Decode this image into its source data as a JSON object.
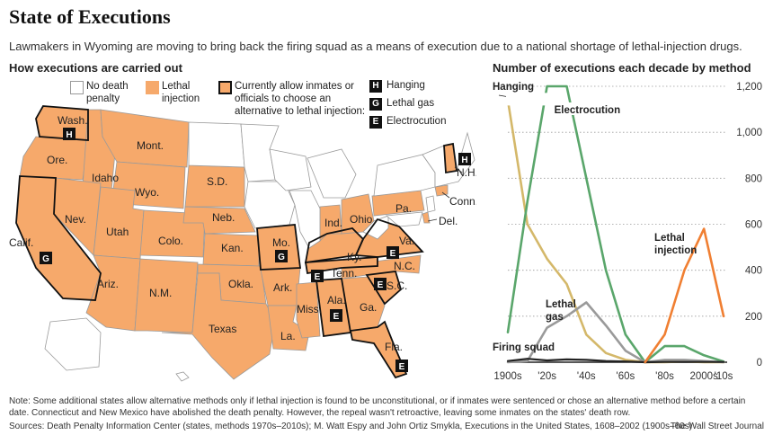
{
  "title": "State of Executions",
  "subtitle": "Lawmakers in Wyoming are moving to bring back the firing squad as a means of execution due to a national shortage of lethal-injection drugs.",
  "map": {
    "heading": "How executions are carried out",
    "legend": {
      "no_death_penalty": "No death penalty",
      "lethal_injection": "Lethal injection",
      "alternative": "Currently allow inmates or officials to choose an alternative to lethal injection:"
    },
    "method_keys": [
      {
        "letter": "H",
        "label": "Hanging"
      },
      {
        "letter": "G",
        "label": "Lethal gas"
      },
      {
        "letter": "E",
        "label": "Electrocution"
      }
    ],
    "state_labels": [
      "Wash.",
      "Ore.",
      "Idaho",
      "Mont.",
      "Wyo.",
      "S.D.",
      "Neb.",
      "Calif.",
      "Nev.",
      "Utah",
      "Colo.",
      "Kan.",
      "Mo.",
      "Ky.",
      "Va.",
      "Ind.",
      "Ohio",
      "Pa.",
      "N.H.",
      "Conn.",
      "Del.",
      "Tenn.",
      "N.C.",
      "S.C.",
      "Ariz.",
      "N.M.",
      "Okla.",
      "Ark.",
      "Miss.",
      "Ala.",
      "Ga.",
      "Texas",
      "La.",
      "Fla."
    ],
    "colors": {
      "lethal": "#f6a96b",
      "none": "#ffffff",
      "outline": "#9a9a9a",
      "bold_outline": "#111111"
    }
  },
  "chart_data": {
    "type": "line",
    "title": "Number of executions each decade by method",
    "x": [
      "1900s",
      "'10s",
      "'20s",
      "'30s",
      "'40s",
      "'50s",
      "'60s",
      "'70s",
      "'80s",
      "'90s",
      "2000s",
      "'10s"
    ],
    "x_tick_labels": [
      "1900s",
      "'20s",
      "'40s",
      "'60s",
      "'80s",
      "2000s",
      "'10s"
    ],
    "ylim": [
      0,
      1200
    ],
    "y_ticks": [
      "0",
      "200",
      "400",
      "600",
      "800",
      "1,000",
      "1,200"
    ],
    "series": [
      {
        "name": "Hanging",
        "color": "#d4b86a",
        "values": [
          1140,
          600,
          450,
          340,
          120,
          40,
          10,
          0,
          0,
          3,
          0,
          0
        ]
      },
      {
        "name": "Electrocution",
        "color": "#5aa66b",
        "values": [
          130,
          700,
          1200,
          1200,
          800,
          400,
          120,
          0,
          70,
          70,
          30,
          3
        ]
      },
      {
        "name": "Lethal gas",
        "color": "#9a9a9a",
        "values": [
          0,
          5,
          150,
          200,
          260,
          160,
          50,
          0,
          10,
          10,
          5,
          0
        ]
      },
      {
        "name": "Firing squad",
        "color": "#222222",
        "values": [
          5,
          15,
          8,
          12,
          10,
          5,
          3,
          0,
          1,
          1,
          1,
          1
        ]
      },
      {
        "name": "Lethal injection",
        "color": "#f07f32",
        "values": [
          null,
          null,
          null,
          null,
          null,
          null,
          null,
          0,
          120,
          400,
          580,
          200
        ]
      }
    ],
    "series_labels": {
      "hanging": "Hanging",
      "electrocution": "Electrocution",
      "lethal_gas_1": "Lethal",
      "lethal_gas_2": "gas",
      "firing_squad": "Firing squad",
      "lethal_injection_1": "Lethal",
      "lethal_injection_2": "injection"
    }
  },
  "note": "Note: Some additional states allow alternative methods only if lethal injection is found to be unconstitutional, or if inmates were sentenced or chose an alternative method before a certain date. Connecticut and New Mexico have abolished the death penalty. However, the repeal wasn't retroactive, leaving some inmates on the states' death row.",
  "sources": "Sources: Death Penalty Information Center (states, methods 1970s–2010s); M. Watt Espy and John Ortiz Smykla, Executions in the United States, 1608–2002 (1900s–60s)",
  "credit": "The Wall Street Journal"
}
